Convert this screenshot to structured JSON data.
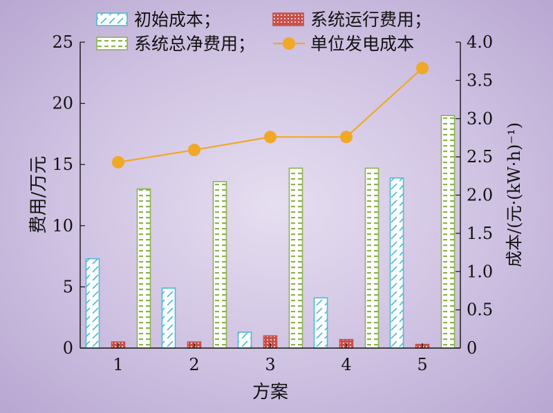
{
  "chart_data": {
    "type": "bar",
    "xlabel": "方案",
    "ylabel": "费用/万元",
    "y2label": "成本/(元·(kW·h)⁻¹)",
    "categories": [
      "1",
      "2",
      "3",
      "4",
      "5"
    ],
    "ylim": [
      0,
      25
    ],
    "yticks": [
      "0",
      "5",
      "10",
      "15",
      "20",
      "25"
    ],
    "y2lim": [
      0,
      4.0
    ],
    "y2ticks": [
      "0",
      "0.5",
      "1.0",
      "1.5",
      "2.0",
      "2.5",
      "3.0",
      "3.5",
      "4.0"
    ],
    "legend_position": "top",
    "series": [
      {
        "name": "初始成本；",
        "type": "bar",
        "axis": "left",
        "values": [
          7.3,
          4.9,
          1.3,
          4.1,
          13.9
        ],
        "color": "#4fb8d8",
        "pattern": "diagonal-hatch"
      },
      {
        "name": "系统运行费用；",
        "type": "bar",
        "axis": "left",
        "values": [
          0.5,
          0.5,
          1.0,
          0.7,
          0.3
        ],
        "color": "#c8504a",
        "pattern": "dots"
      },
      {
        "name": "系统总净费用；",
        "type": "bar",
        "axis": "left",
        "values": [
          13.0,
          13.6,
          14.7,
          14.7,
          19.0
        ],
        "color": "#8ab34a",
        "pattern": "dashes"
      },
      {
        "name": "单位发电成本",
        "type": "line",
        "axis": "right",
        "values": [
          2.43,
          2.59,
          2.76,
          2.76,
          3.66
        ],
        "color": "#f0a826"
      }
    ]
  }
}
